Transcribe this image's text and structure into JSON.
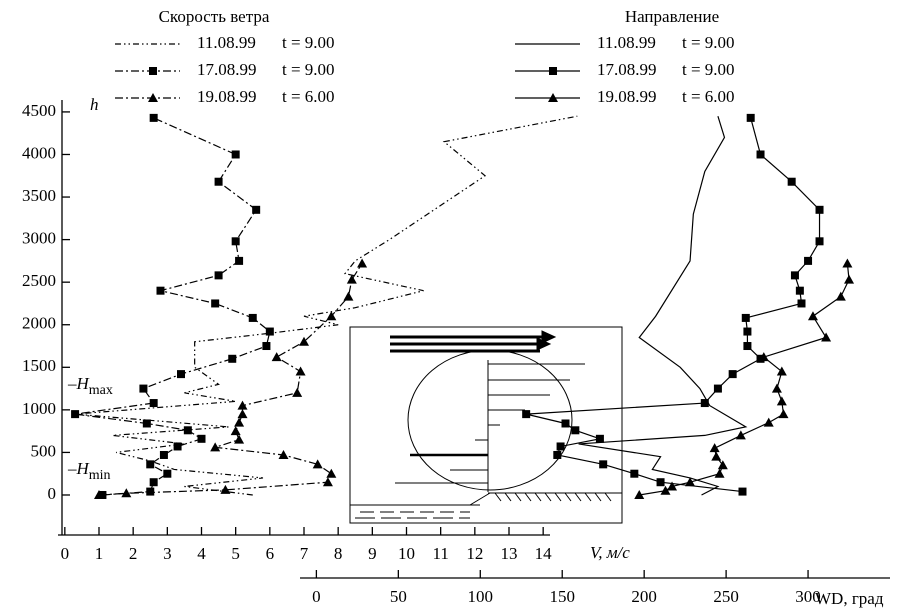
{
  "chart_data": {
    "type": "line",
    "legend_titles": [
      "Скорость ветра",
      "Направление"
    ],
    "y_label": "h",
    "x_label": "V, м/с",
    "x2_label": "WD, град",
    "annotations": [
      {
        "text": "–H",
        "sub": "max"
      },
      {
        "text": "–H",
        "sub": "min"
      }
    ],
    "ylim": [
      -470,
      4640
    ],
    "yticks": [
      0,
      500,
      1000,
      1500,
      2000,
      2500,
      3000,
      3500,
      4000,
      4500
    ],
    "xlim": [
      -0.2,
      14.2
    ],
    "xticks": [
      0,
      1,
      2,
      3,
      4,
      5,
      6,
      7,
      8,
      9,
      10,
      11,
      12,
      13,
      14
    ],
    "x2lim": [
      -10,
      350
    ],
    "x2ticks": [
      0,
      50,
      100,
      150,
      200,
      250,
      300
    ],
    "series": [
      {
        "name": "11.08.99",
        "time": "t = 9.00",
        "axis": "x",
        "style": "dash-dot-dot",
        "marker": null,
        "color": "#000000",
        "h": [
          0,
          100,
          200,
          300,
          400,
          500,
          600,
          700,
          800,
          950,
          1100,
          1200,
          1300,
          1500,
          1800,
          1900,
          2000,
          2100,
          2200,
          2400,
          2600,
          2750,
          3000,
          3750,
          4150,
          4450
        ],
        "values": [
          5.5,
          3.5,
          5.8,
          3.2,
          2.5,
          1.5,
          3.5,
          1.4,
          4.8,
          0.3,
          5.0,
          3.5,
          4.5,
          3.8,
          3.8,
          6.0,
          8.0,
          7.0,
          8.5,
          10.5,
          8.2,
          8.5,
          9.5,
          12.3,
          11.1,
          15.0
        ]
      },
      {
        "name": "17.08.99",
        "time": "t = 9.00",
        "axis": "x",
        "style": "dash-dot",
        "marker": "square",
        "color": "#000000",
        "h": [
          0,
          40,
          150,
          250,
          360,
          470,
          570,
          660,
          760,
          840,
          950,
          1080,
          1250,
          1420,
          1600,
          1750,
          1920,
          2080,
          2250,
          2400,
          2580,
          2750,
          2980,
          3350,
          3680,
          4000,
          4430
        ],
        "values": [
          1.1,
          2.5,
          2.6,
          3.0,
          2.5,
          2.9,
          3.3,
          4.0,
          3.6,
          2.4,
          0.3,
          2.6,
          2.3,
          3.4,
          4.9,
          5.9,
          6.0,
          5.5,
          4.4,
          2.8,
          4.5,
          5.1,
          5.0,
          5.6,
          4.5,
          5.0,
          2.6
        ]
      },
      {
        "name": "19.08.99",
        "time": "t = 6.00",
        "axis": "x",
        "style": "dash-dot",
        "marker": "triangle",
        "color": "#000000",
        "h": [
          0,
          20,
          60,
          150,
          250,
          360,
          470,
          560,
          650,
          750,
          850,
          950,
          1050,
          1200,
          1450,
          1620,
          1800,
          2100,
          2330,
          2530,
          2720
        ],
        "values": [
          1.0,
          1.8,
          4.7,
          7.7,
          7.8,
          7.4,
          6.4,
          4.4,
          5.1,
          5.0,
          5.1,
          5.2,
          5.2,
          6.8,
          6.9,
          6.2,
          7.0,
          7.8,
          8.3,
          8.4,
          8.7
        ]
      },
      {
        "name": "11.08.99",
        "time": "t = 9.00",
        "axis": "x2",
        "style": "solid",
        "marker": null,
        "color": "#000000",
        "h": [
          0,
          100,
          200,
          300,
          450,
          600,
          700,
          800,
          1050,
          1250,
          1500,
          1850,
          2100,
          2750,
          3300,
          3800,
          4200,
          4450
        ],
        "values": [
          235,
          245,
          228,
          205,
          210,
          160,
          237,
          262,
          240,
          234,
          222,
          197,
          207,
          228,
          230,
          237,
          249,
          245
        ]
      },
      {
        "name": "17.08.99",
        "time": "t = 9.00",
        "axis": "x2",
        "style": "solid",
        "marker": "square",
        "color": "#000000",
        "h": [
          40,
          150,
          250,
          360,
          470,
          570,
          660,
          760,
          840,
          950,
          1080,
          1250,
          1420,
          1600,
          1750,
          1920,
          2080,
          2250,
          2400,
          2580,
          2750,
          2980,
          3350,
          3680,
          4000,
          4430
        ],
        "values": [
          260,
          210,
          194,
          175,
          147,
          149,
          173,
          158,
          152,
          128,
          237,
          245,
          254,
          271,
          263,
          263,
          262,
          296,
          295,
          292,
          300,
          307,
          307,
          290,
          271,
          265
        ]
      },
      {
        "name": "19.08.99",
        "time": "t = 6.00",
        "axis": "x2",
        "style": "solid",
        "marker": "triangle",
        "color": "#000000",
        "h": [
          0,
          50,
          100,
          150,
          250,
          350,
          450,
          550,
          700,
          850,
          950,
          1100,
          1250,
          1450,
          1620,
          1850,
          2100,
          2330,
          2530,
          2720
        ],
        "values": [
          197,
          213,
          217,
          228,
          246,
          248,
          244,
          243,
          259,
          276,
          285,
          284,
          281,
          284,
          273,
          311,
          303,
          320,
          325,
          324
        ]
      }
    ]
  }
}
